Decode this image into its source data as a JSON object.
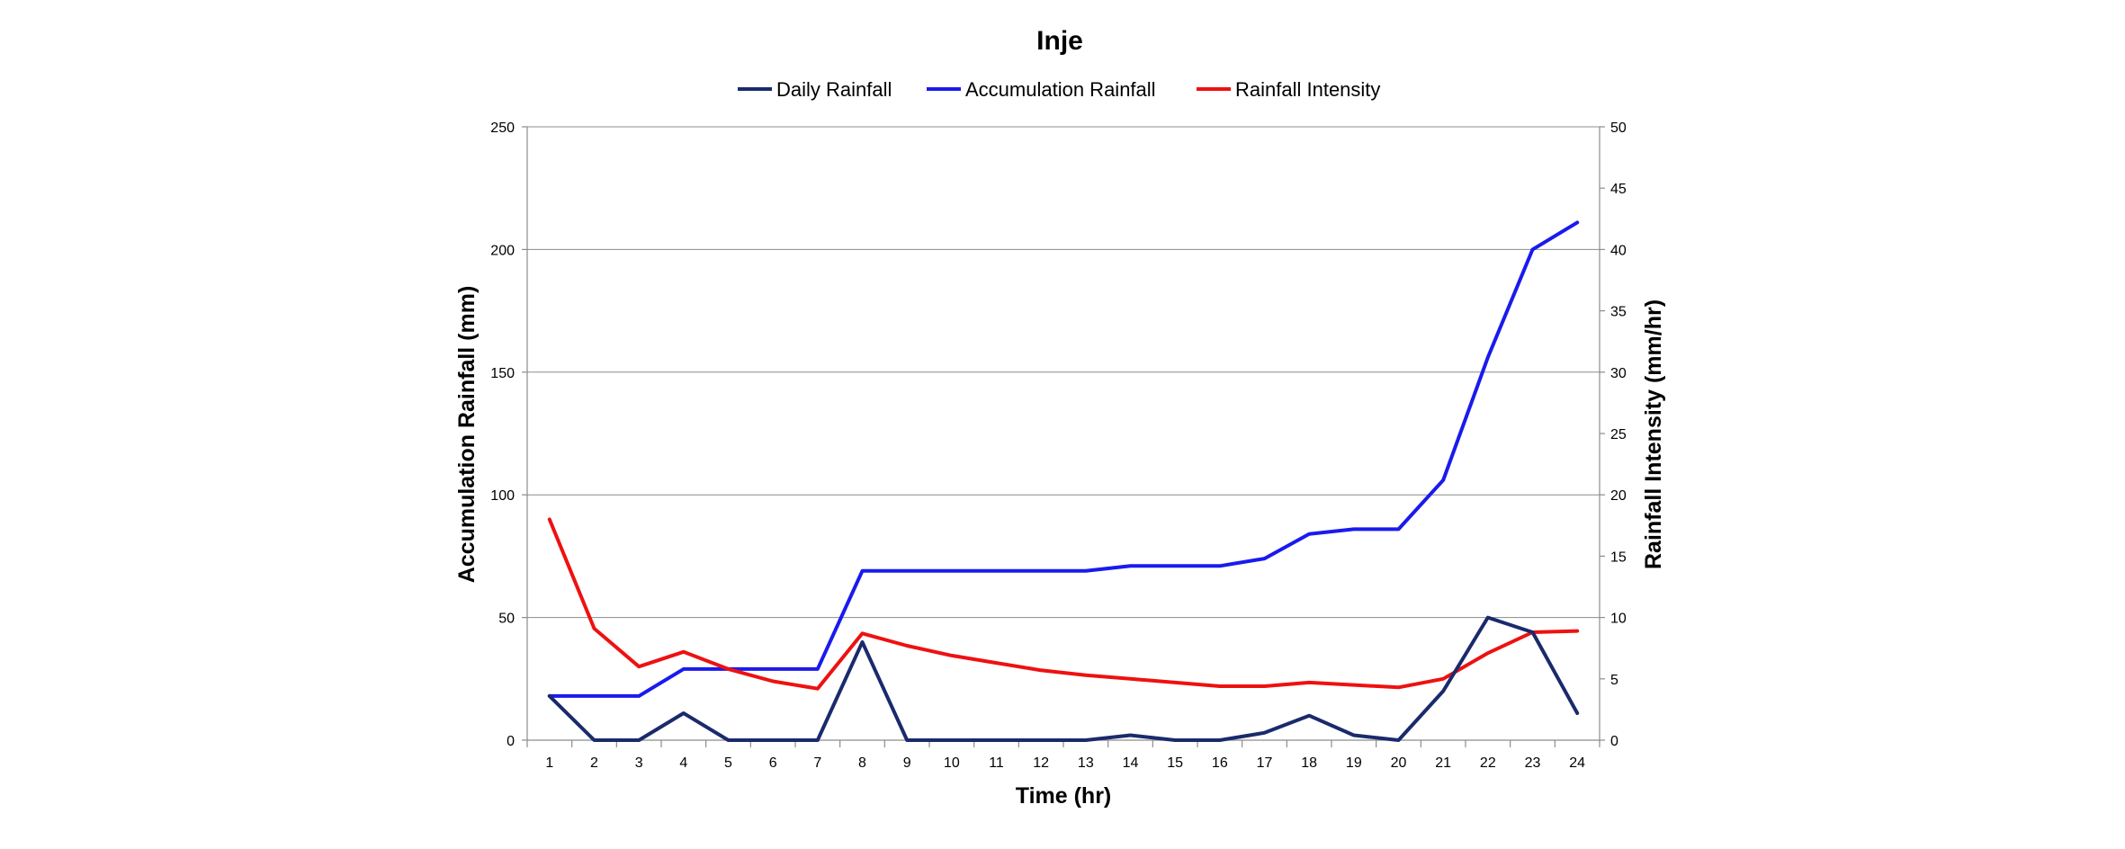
{
  "chart_data": {
    "type": "line",
    "title": "Inje",
    "xlabel": "Time (hr)",
    "ylabel_left": "Accumulation Rainfall (mm)",
    "ylabel_right": "Rainfall Intensity (mm/hr)",
    "x": [
      1,
      2,
      3,
      4,
      5,
      6,
      7,
      8,
      9,
      10,
      11,
      12,
      13,
      14,
      15,
      16,
      17,
      18,
      19,
      20,
      21,
      22,
      23,
      24
    ],
    "x_tick_labels": [
      "1",
      "2",
      "3",
      "4",
      "5",
      "6",
      "7",
      "8",
      "9",
      "10",
      "11",
      "12",
      "13",
      "14",
      "15",
      "16",
      "17",
      "18",
      "19",
      "20",
      "21",
      "22",
      "23",
      "24"
    ],
    "ylim_left": [
      0,
      250
    ],
    "yticks_left": [
      "0",
      "50",
      "100",
      "150",
      "200",
      "250"
    ],
    "ylim_right": [
      0,
      50
    ],
    "yticks_right": [
      "0",
      "5",
      "10",
      "15",
      "20",
      "25",
      "30",
      "35",
      "40",
      "45",
      "50"
    ],
    "grid": true,
    "legend_position": "top",
    "series": [
      {
        "name": "Daily Rainfall",
        "axis": "left",
        "color": "#1a2a6c",
        "values": [
          18,
          0,
          0,
          11,
          0,
          0,
          0,
          40,
          0,
          0,
          0,
          0,
          0,
          2,
          0,
          0,
          3,
          10,
          2,
          0,
          20,
          50,
          44,
          11
        ]
      },
      {
        "name": "Accumulation Rainfall",
        "axis": "left",
        "color": "#1a1aee",
        "values": [
          18,
          18,
          18,
          29,
          29,
          29,
          29,
          69,
          69,
          69,
          69,
          69,
          69,
          71,
          71,
          71,
          74,
          84,
          86,
          86,
          106,
          156,
          200,
          211
        ]
      },
      {
        "name": "Rainfall Intensity",
        "axis": "right",
        "color": "#ee1111",
        "values": [
          18,
          9.1,
          6,
          7.2,
          5.8,
          4.8,
          4.2,
          8.7,
          7.7,
          6.9,
          6.3,
          5.7,
          5.3,
          5,
          4.7,
          4.4,
          4.4,
          4.7,
          4.5,
          4.3,
          5,
          7.1,
          8.8,
          8.9
        ]
      }
    ]
  }
}
